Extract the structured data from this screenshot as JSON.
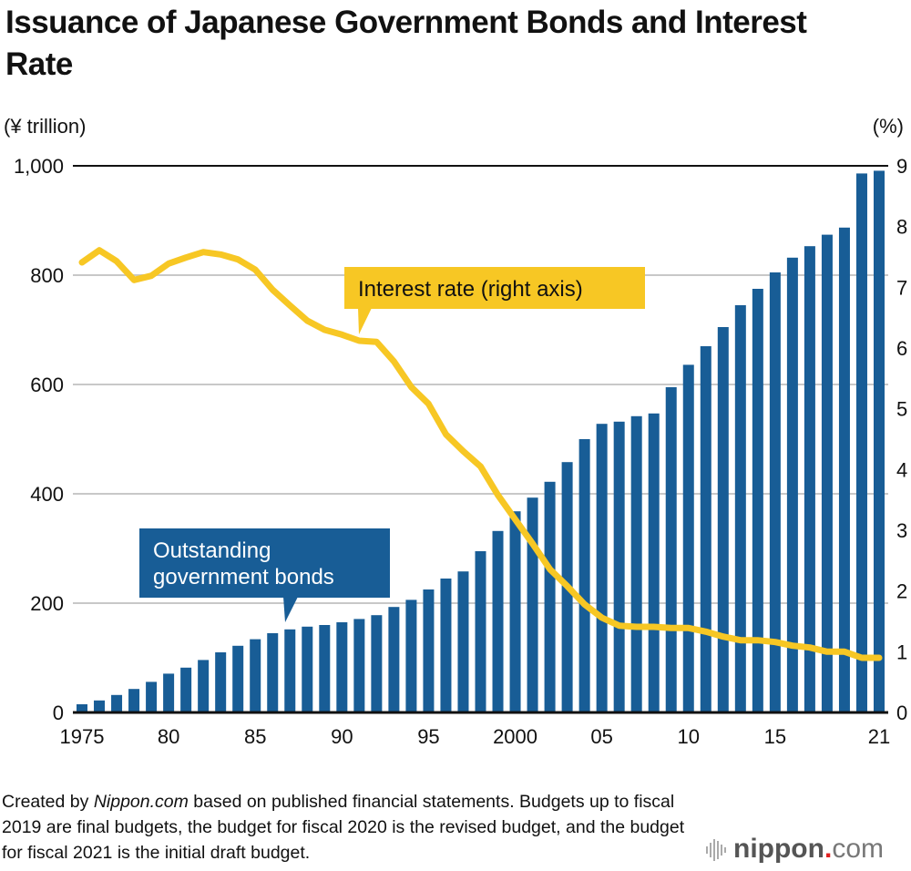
{
  "title": "Issuance of Japanese Government Bonds and Interest Rate",
  "left_unit": "(¥ trillion)",
  "right_unit": "(%)",
  "footer": {
    "prefix": "Created by ",
    "source_italic": "Nippon.com",
    "rest": " based on published financial statements. Budgets up to fiscal 2019 are final budgets, the budget for fiscal 2020 is the revised budget, and the budget for fiscal 2021 is the initial draft budget."
  },
  "logo": {
    "main": "nippon",
    "dot": ".",
    "suffix": "com"
  },
  "colors": {
    "bar": "#185d96",
    "line": "#f7c724",
    "grid": "#c8c8c8",
    "axis": "#111111",
    "logo_dot": "#e02020"
  },
  "chart_data": {
    "type": "bar+line",
    "title": "Issuance of Japanese Government Bonds and Interest Rate",
    "xlabel": "",
    "ylabel_left": "(¥ trillion)",
    "ylabel_right": "(%)",
    "ylim_left": [
      0,
      1000
    ],
    "ylim_right": [
      0,
      9
    ],
    "yticks_left": [
      "0",
      "200",
      "400",
      "600",
      "800",
      "1,000"
    ],
    "yticks_right": [
      "0",
      "1",
      "2",
      "3",
      "4",
      "5",
      "6",
      "7",
      "8",
      "9"
    ],
    "xtick_labels": [
      {
        "year": 1975,
        "label": "1975"
      },
      {
        "year": 1980,
        "label": "80"
      },
      {
        "year": 1985,
        "label": "85"
      },
      {
        "year": 1990,
        "label": "90"
      },
      {
        "year": 1995,
        "label": "95"
      },
      {
        "year": 2000,
        "label": "2000"
      },
      {
        "year": 2005,
        "label": "05"
      },
      {
        "year": 2010,
        "label": "10"
      },
      {
        "year": 2015,
        "label": "15"
      },
      {
        "year": 2021,
        "label": "21"
      }
    ],
    "grid": true,
    "x": [
      1975,
      1976,
      1977,
      1978,
      1979,
      1980,
      1981,
      1982,
      1983,
      1984,
      1985,
      1986,
      1987,
      1988,
      1989,
      1990,
      1991,
      1992,
      1993,
      1994,
      1995,
      1996,
      1997,
      1998,
      1999,
      2000,
      2001,
      2002,
      2003,
      2004,
      2005,
      2006,
      2007,
      2008,
      2009,
      2010,
      2011,
      2012,
      2013,
      2014,
      2015,
      2016,
      2017,
      2018,
      2019,
      2020,
      2021
    ],
    "series": [
      {
        "name": "Outstanding government bonds",
        "type": "bar",
        "axis": "left",
        "values": [
          15,
          22,
          32,
          43,
          56,
          71,
          82,
          96,
          110,
          122,
          134,
          145,
          152,
          157,
          160,
          165,
          171,
          178,
          193,
          206,
          225,
          245,
          258,
          295,
          332,
          368,
          393,
          422,
          458,
          500,
          528,
          532,
          542,
          547,
          595,
          636,
          670,
          705,
          745,
          775,
          805,
          832,
          853,
          874,
          887,
          986,
          991
        ]
      },
      {
        "name": "Interest rate (right axis)",
        "type": "line",
        "axis": "right",
        "values": [
          7.41,
          7.61,
          7.43,
          7.12,
          7.19,
          7.39,
          7.49,
          7.58,
          7.54,
          7.46,
          7.29,
          6.96,
          6.7,
          6.45,
          6.3,
          6.22,
          6.12,
          6.1,
          5.78,
          5.36,
          5.08,
          4.58,
          4.3,
          4.05,
          3.58,
          3.18,
          2.78,
          2.36,
          2.08,
          1.78,
          1.56,
          1.43,
          1.41,
          1.41,
          1.39,
          1.39,
          1.33,
          1.25,
          1.19,
          1.19,
          1.16,
          1.1,
          1.07,
          1.0,
          1.0,
          0.9,
          0.9
        ]
      }
    ],
    "annotations": [
      {
        "text": "Outstanding government bonds",
        "lines": [
          "Outstanding",
          "government bonds"
        ],
        "series": "Outstanding government bonds"
      },
      {
        "text": "Interest rate (right axis)",
        "series": "Interest rate (right axis)"
      }
    ]
  }
}
